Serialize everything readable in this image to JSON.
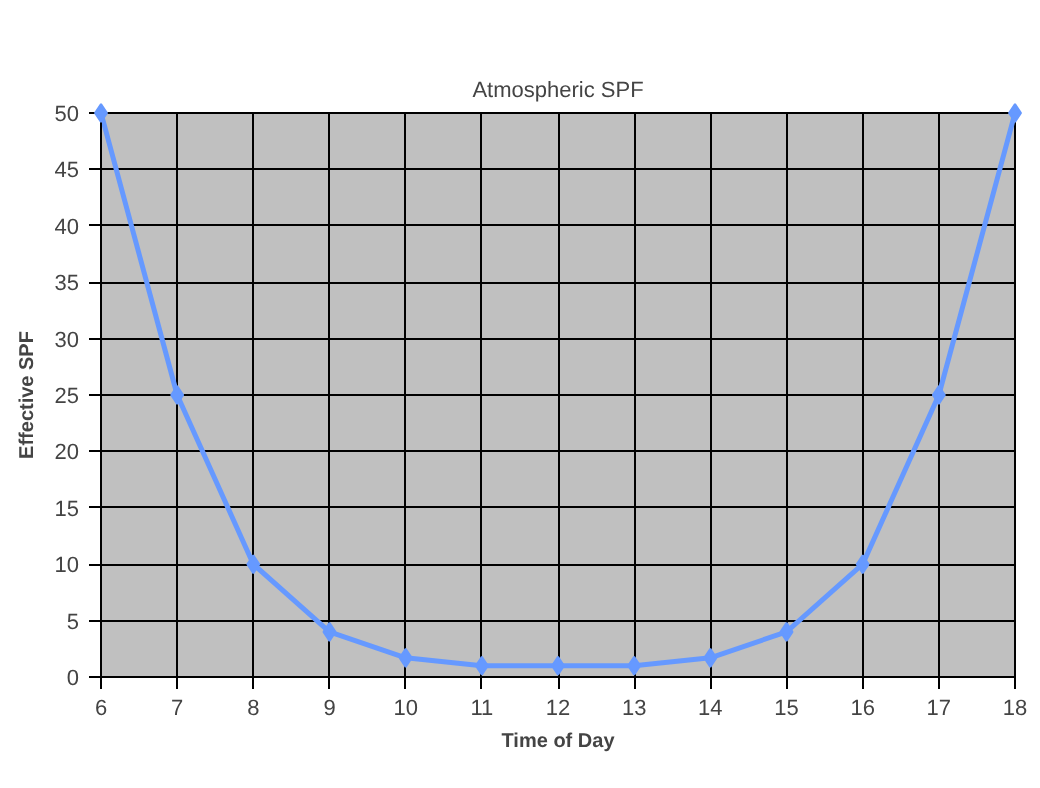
{
  "chart_data": {
    "type": "line",
    "title": "Atmospheric SPF",
    "xlabel": "Time of Day",
    "ylabel": "Effective SPF",
    "x": [
      6,
      7,
      8,
      9,
      10,
      11,
      12,
      13,
      14,
      15,
      16,
      17,
      18
    ],
    "series": [
      {
        "color": "#6699ff",
        "values": [
          50,
          25,
          10,
          4,
          1.7,
          1,
          1,
          1,
          1.7,
          4,
          10,
          25,
          50
        ]
      }
    ],
    "xlim": [
      6,
      18
    ],
    "xticks": [
      6,
      7,
      8,
      9,
      10,
      11,
      12,
      13,
      14,
      15,
      16,
      17,
      18
    ],
    "ylim": [
      0,
      50
    ],
    "yticks": [
      0,
      5,
      10,
      15,
      20,
      25,
      30,
      35,
      40,
      45,
      50
    ],
    "grid": true,
    "marker": "diamond",
    "line_style": "solid"
  }
}
